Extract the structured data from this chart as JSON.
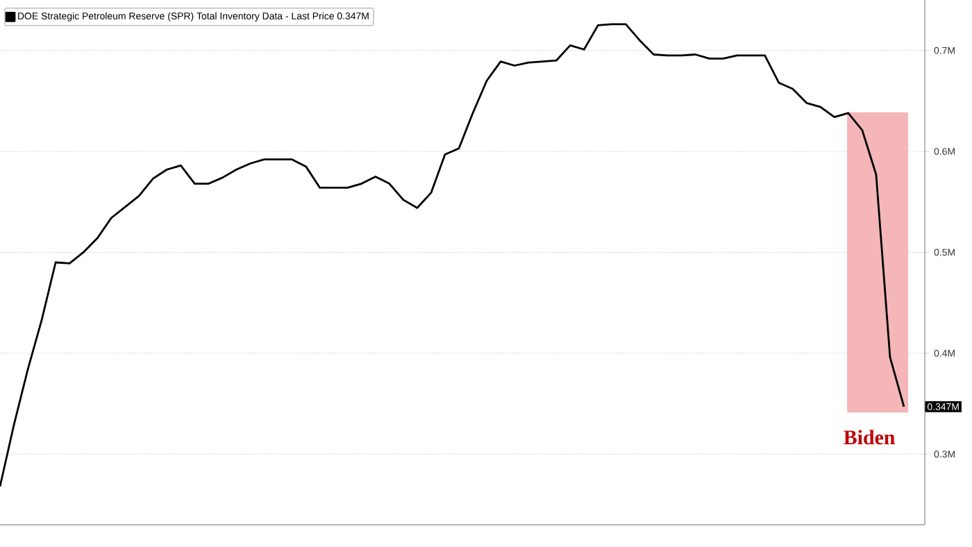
{
  "chart_data": {
    "type": "line",
    "categories": [
      null,
      null,
      null,
      null,
      null,
      null,
      null,
      null,
      null,
      null,
      null,
      null,
      null,
      null,
      null,
      null,
      null,
      null,
      null,
      null,
      null,
      null,
      null,
      null,
      null,
      null,
      null,
      null,
      null,
      null,
      null,
      null,
      null,
      null,
      null,
      null,
      null,
      null,
      null,
      null,
      null,
      null,
      null,
      null,
      null,
      null,
      null,
      null,
      null,
      null,
      null,
      null,
      null,
      null,
      null,
      null,
      null,
      null,
      null,
      null,
      null,
      null,
      null,
      null,
      null,
      null
    ],
    "series": [
      {
        "name": "DOE Strategic Petroleum Reserve (SPR) Total Inventory Data - Last Price 0.347M",
        "color": "#000000",
        "values": [
          0.268,
          0.329,
          0.384,
          0.433,
          0.49,
          0.489,
          0.5,
          0.514,
          0.534,
          0.545,
          0.556,
          0.573,
          0.582,
          0.586,
          0.568,
          0.568,
          0.574,
          0.582,
          0.588,
          0.592,
          0.592,
          0.592,
          0.585,
          0.564,
          0.564,
          0.564,
          0.568,
          0.575,
          0.568,
          0.552,
          0.544,
          0.559,
          0.597,
          0.603,
          0.638,
          0.67,
          0.689,
          0.685,
          0.688,
          0.689,
          0.69,
          0.705,
          0.701,
          0.725,
          0.726,
          0.726,
          0.71,
          0.696,
          0.695,
          0.695,
          0.696,
          0.692,
          0.692,
          0.695,
          0.695,
          0.695,
          0.668,
          0.662,
          0.648,
          0.644,
          0.634,
          0.638,
          0.621,
          0.577,
          0.396,
          0.347
        ]
      }
    ],
    "ylim": [
      0.23,
      0.75
    ],
    "yticks": [
      {
        "value": 0.3,
        "label": "0.3M"
      },
      {
        "value": 0.4,
        "label": "0.4M"
      },
      {
        "value": 0.5,
        "label": "0.5M"
      },
      {
        "value": 0.6,
        "label": "0.6M"
      },
      {
        "value": 0.7,
        "label": "0.7M"
      }
    ],
    "annotations": [
      {
        "text": "0.347M",
        "y": 0.347
      },
      "Biden"
    ],
    "grid": "y",
    "legend": "top left",
    "tick_labels": "y",
    "marker": "none",
    "line_style": "solid"
  }
}
